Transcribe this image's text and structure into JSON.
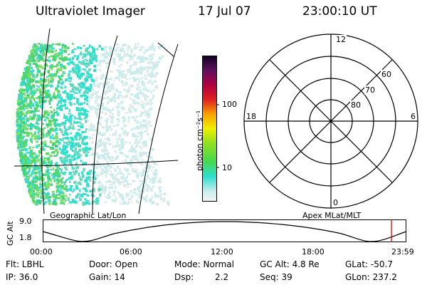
{
  "header": {
    "instrument": "Ultraviolet Imager",
    "date": "17 Jul 07",
    "time": "23:00:10 UT"
  },
  "colorbar": {
    "unit_label": "photon cm⁻²s⁻¹",
    "ticks": [
      "100",
      "10"
    ]
  },
  "polar": {
    "mlt_labels": {
      "top": "12",
      "left": "18",
      "right": "6",
      "bottom": "0"
    },
    "lat_labels": [
      "60",
      "70",
      "80"
    ]
  },
  "map_labels": {
    "left": "Geographic Lat/Lon",
    "right": "Apex MLat/MLT"
  },
  "gc_alt_panel": {
    "axis_label": "GC Alt",
    "y_ticks": [
      "9.0",
      "1.8"
    ],
    "x_ticks": [
      "00:00",
      "06:00",
      "12:00",
      "18:00",
      "23:59"
    ],
    "marker_color": "#e00000",
    "marker_time_hours": 23.0
  },
  "info": {
    "flt": "Flt: LBHL",
    "ip": "IP: 36.0",
    "door": "Door: Open",
    "gain": "Gain: 14",
    "mode": "Mode: Normal",
    "dsp_label": "Dsp:",
    "dsp_value": "2.2",
    "gc_alt": "GC Alt: 4.8 Re",
    "seq": "Seq: 39",
    "glat": "GLat: -50.7",
    "glon": "GLon: 237.2"
  }
}
